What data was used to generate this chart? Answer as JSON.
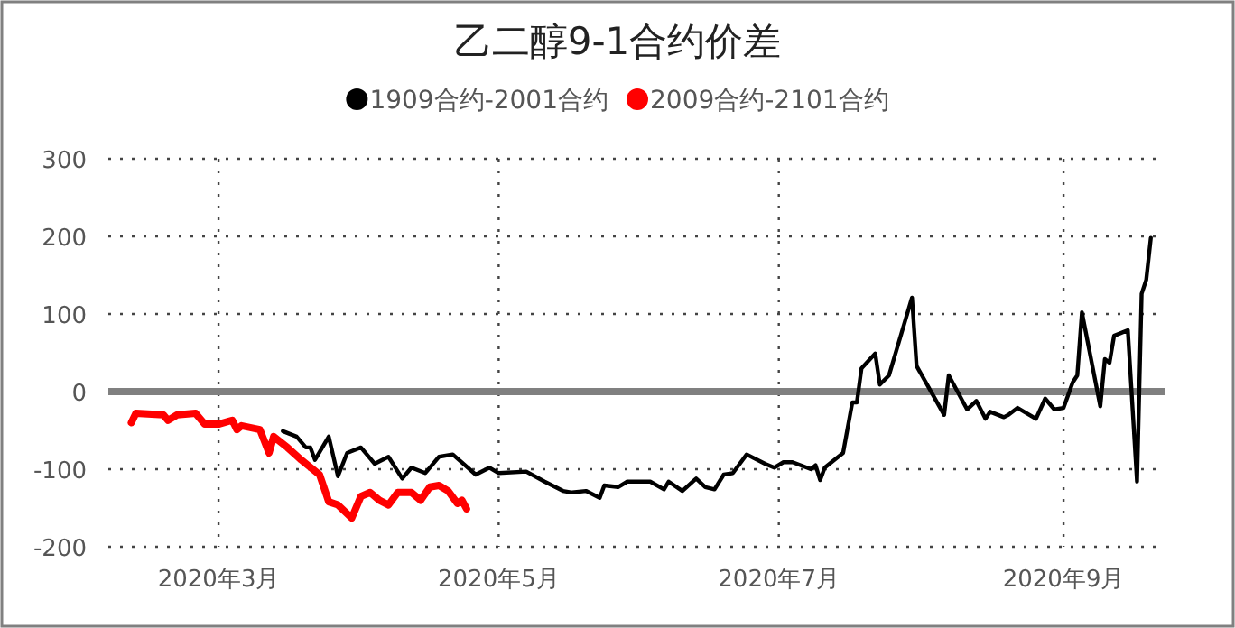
{
  "chart_data": {
    "type": "line",
    "title": "乙二醇9-1合约价差",
    "legend": "top",
    "grid": true,
    "marker": "none",
    "line_style": "solid",
    "xlim": [
      "2020-02-06",
      "2020-09-23"
    ],
    "xticks": [
      {
        "value": "2020-03-01",
        "label": "2020年3月"
      },
      {
        "value": "2020-05-01",
        "label": "2020年5月"
      },
      {
        "value": "2020-07-01",
        "label": "2020年7月"
      },
      {
        "value": "2020-09-01",
        "label": "2020年9月"
      }
    ],
    "ylim": [
      -200,
      300
    ],
    "yticks": [
      -200,
      -100,
      0,
      100,
      200,
      300
    ],
    "ref_lines": [
      {
        "axis": "y",
        "value": 0,
        "color": "#808080"
      }
    ],
    "series": [
      {
        "name": "1909合约-2001合约",
        "color": "#000000",
        "x": [
          "2020-03-15",
          "2020-03-18",
          "2020-03-20",
          "2020-03-21",
          "2020-03-22",
          "2020-03-25",
          "2020-03-27",
          "2020-03-29",
          "2020-04-01",
          "2020-04-04",
          "2020-04-07",
          "2020-04-10",
          "2020-04-12",
          "2020-04-15",
          "2020-04-18",
          "2020-04-21",
          "2020-04-26",
          "2020-04-29",
          "2020-05-01",
          "2020-05-07",
          "2020-05-11",
          "2020-05-15",
          "2020-05-17",
          "2020-05-20",
          "2020-05-23",
          "2020-05-24",
          "2020-05-27",
          "2020-05-29",
          "2020-06-03",
          "2020-06-06",
          "2020-06-07",
          "2020-06-10",
          "2020-06-13",
          "2020-06-15",
          "2020-06-17",
          "2020-06-19",
          "2020-06-21",
          "2020-06-24",
          "2020-06-28",
          "2020-06-30",
          "2020-07-02",
          "2020-07-04",
          "2020-07-08",
          "2020-07-09",
          "2020-07-10",
          "2020-07-11",
          "2020-07-15",
          "2020-07-17",
          "2020-07-18",
          "2020-07-19",
          "2020-07-22",
          "2020-07-23",
          "2020-07-25",
          "2020-07-30",
          "2020-07-31",
          "2020-08-06",
          "2020-08-07",
          "2020-08-11",
          "2020-08-13",
          "2020-08-15",
          "2020-08-16",
          "2020-08-19",
          "2020-08-20",
          "2020-08-22",
          "2020-08-26",
          "2020-08-28",
          "2020-08-30",
          "2020-09-01",
          "2020-09-03",
          "2020-09-04",
          "2020-09-05",
          "2020-09-09",
          "2020-09-10",
          "2020-09-11",
          "2020-09-12",
          "2020-09-15",
          "2020-09-17",
          "2020-09-18",
          "2020-09-19",
          "2020-09-20"
        ],
        "values": [
          -51,
          -58,
          -72,
          -72,
          -88,
          -58,
          -109,
          -79,
          -72,
          -93,
          -84,
          -112,
          -98,
          -105,
          -84,
          -81,
          -107,
          -98,
          -105,
          -103,
          -116,
          -128,
          -130,
          -128,
          -137,
          -121,
          -123,
          -116,
          -116,
          -126,
          -116,
          -128,
          -112,
          -123,
          -126,
          -107,
          -105,
          -81,
          -93,
          -98,
          -91,
          -91,
          -100,
          -95,
          -114,
          -98,
          -79,
          -14,
          -14,
          30,
          49,
          9,
          21,
          121,
          33,
          -30,
          21,
          -23,
          -12,
          -35,
          -26,
          -33,
          -30,
          -21,
          -35,
          -9,
          -23,
          -21,
          12,
          21,
          102,
          -19,
          42,
          37,
          72,
          79,
          -116,
          126,
          144,
          198
        ]
      },
      {
        "name": "2009合约-2101合约",
        "color": "#ff0000",
        "x": [
          "2020-02-11",
          "2020-02-12",
          "2020-02-18",
          "2020-02-19",
          "2020-02-21",
          "2020-02-25",
          "2020-02-27",
          "2020-03-01",
          "2020-03-04",
          "2020-03-05",
          "2020-03-06",
          "2020-03-10",
          "2020-03-12",
          "2020-03-13",
          "2020-03-16",
          "2020-03-19",
          "2020-03-23",
          "2020-03-25",
          "2020-03-27",
          "2020-03-30",
          "2020-04-01",
          "2020-04-03",
          "2020-04-05",
          "2020-04-07",
          "2020-04-09",
          "2020-04-12",
          "2020-04-14",
          "2020-04-16",
          "2020-04-18",
          "2020-04-20",
          "2020-04-22",
          "2020-04-23",
          "2020-04-24"
        ],
        "values": [
          -40,
          -28,
          -30,
          -37,
          -30,
          -28,
          -42,
          -42,
          -37,
          -49,
          -44,
          -49,
          -79,
          -58,
          -72,
          -88,
          -107,
          -142,
          -146,
          -163,
          -135,
          -130,
          -140,
          -146,
          -130,
          -130,
          -140,
          -123,
          -121,
          -128,
          -144,
          -140,
          -151
        ]
      }
    ]
  }
}
